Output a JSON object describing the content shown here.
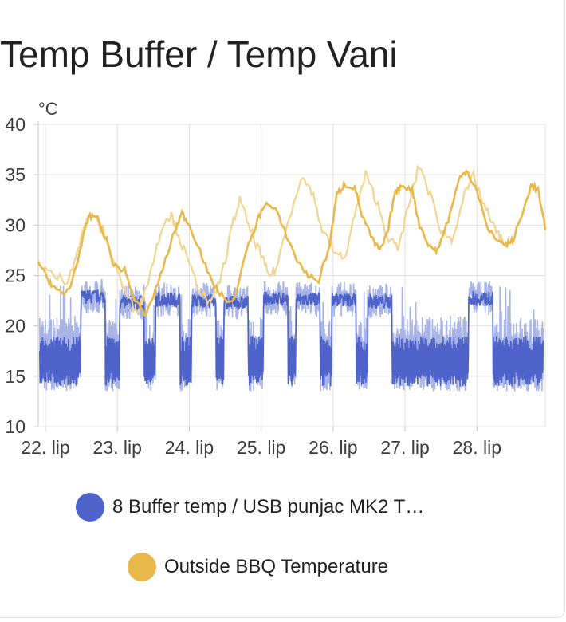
{
  "card": {
    "title": "Temp Buffer / Temp Vani"
  },
  "chart_data": {
    "type": "line",
    "unit": "°C",
    "ylim": [
      10,
      40
    ],
    "y_ticks": [
      10,
      15,
      20,
      25,
      30,
      35,
      40
    ],
    "xlim": [
      21.9,
      28.95
    ],
    "x_ticks": [
      {
        "value": 22,
        "label": "22. lip"
      },
      {
        "value": 23,
        "label": "23. lip"
      },
      {
        "value": 24,
        "label": "24. lip"
      },
      {
        "value": 25,
        "label": "25. lip"
      },
      {
        "value": 26,
        "label": "26. lip"
      },
      {
        "value": 27,
        "label": "27. lip"
      },
      {
        "value": 28,
        "label": "28. lip"
      }
    ],
    "grid": true,
    "legend_position": "bottom",
    "series": [
      {
        "name": "8 Buffer temp / USB punjac MK2 T…",
        "color": "#4d63c9",
        "faded_color": "#a9b4e6",
        "band": [
          14,
          19
        ],
        "peaks": [
          {
            "x": 22.66,
            "y": 23.2
          },
          {
            "x": 23.2,
            "y": 22.6
          },
          {
            "x": 23.7,
            "y": 22.9
          },
          {
            "x": 24.2,
            "y": 22.8
          },
          {
            "x": 24.65,
            "y": 22.6
          },
          {
            "x": 25.2,
            "y": 23.0
          },
          {
            "x": 25.65,
            "y": 22.9
          },
          {
            "x": 26.15,
            "y": 22.9
          },
          {
            "x": 26.65,
            "y": 22.7
          },
          {
            "x": 28.05,
            "y": 23.0
          }
        ],
        "min_band_lows": [
          13,
          14
        ]
      },
      {
        "name": "Outside BBQ Temperature",
        "color": "#e8b84a",
        "faded_color": "#f2d591",
        "points": [
          [
            21.9,
            26.5
          ],
          [
            22.0,
            25.0
          ],
          [
            22.1,
            24.0
          ],
          [
            22.25,
            23.0
          ],
          [
            22.35,
            24.0
          ],
          [
            22.5,
            28.0
          ],
          [
            22.6,
            30.8
          ],
          [
            22.7,
            31.0
          ],
          [
            22.85,
            28.5
          ],
          [
            22.95,
            26.0
          ],
          [
            23.1,
            25.5
          ],
          [
            23.25,
            22.5
          ],
          [
            23.4,
            21.0
          ],
          [
            23.6,
            25.0
          ],
          [
            23.8,
            29.5
          ],
          [
            23.9,
            31.2
          ],
          [
            24.0,
            30.0
          ],
          [
            24.15,
            27.5
          ],
          [
            24.3,
            24.5
          ],
          [
            24.45,
            23.0
          ],
          [
            24.6,
            22.2
          ],
          [
            24.8,
            27.5
          ],
          [
            24.95,
            30.5
          ],
          [
            25.05,
            32.2
          ],
          [
            25.2,
            31.5
          ],
          [
            25.35,
            29.0
          ],
          [
            25.5,
            26.5
          ],
          [
            25.65,
            25.0
          ],
          [
            25.8,
            24.5
          ],
          [
            25.95,
            28.0
          ],
          [
            26.05,
            33.0
          ],
          [
            26.15,
            34.0
          ],
          [
            26.3,
            33.8
          ],
          [
            26.4,
            31.0
          ],
          [
            26.55,
            28.5
          ],
          [
            26.65,
            27.5
          ],
          [
            26.75,
            29.0
          ],
          [
            26.85,
            33.0
          ],
          [
            26.95,
            34.0
          ],
          [
            27.1,
            33.5
          ],
          [
            27.2,
            30.0
          ],
          [
            27.35,
            27.8
          ],
          [
            27.45,
            27.5
          ],
          [
            27.6,
            30.5
          ],
          [
            27.75,
            34.5
          ],
          [
            27.85,
            35.5
          ],
          [
            28.0,
            33.5
          ],
          [
            28.15,
            29.5
          ],
          [
            28.3,
            28.5
          ],
          [
            28.4,
            28.0
          ],
          [
            28.5,
            28.5
          ],
          [
            28.65,
            31.5
          ],
          [
            28.75,
            34.0
          ],
          [
            28.85,
            33.5
          ],
          [
            28.95,
            29.5
          ]
        ],
        "faded_points": [
          [
            21.95,
            26.0
          ],
          [
            22.1,
            25.0
          ],
          [
            22.3,
            24.5
          ],
          [
            22.45,
            27.5
          ],
          [
            22.6,
            31.2
          ],
          [
            22.8,
            29.5
          ],
          [
            22.95,
            26.5
          ],
          [
            23.1,
            23.5
          ],
          [
            23.25,
            21.5
          ],
          [
            23.35,
            22.5
          ],
          [
            23.5,
            26.5
          ],
          [
            23.65,
            30.5
          ],
          [
            23.75,
            31.0
          ],
          [
            23.85,
            29.0
          ],
          [
            24.0,
            26.0
          ],
          [
            24.15,
            23.5
          ],
          [
            24.3,
            22.0
          ],
          [
            24.45,
            25.0
          ],
          [
            24.6,
            30.0
          ],
          [
            24.7,
            32.5
          ],
          [
            24.85,
            29.5
          ],
          [
            25.0,
            27.0
          ],
          [
            25.1,
            25.0
          ],
          [
            25.2,
            25.5
          ],
          [
            25.4,
            31.0
          ],
          [
            25.55,
            34.8
          ],
          [
            25.7,
            33.5
          ],
          [
            25.85,
            29.5
          ],
          [
            26.0,
            27.5
          ],
          [
            26.15,
            26.5
          ],
          [
            26.3,
            31.0
          ],
          [
            26.45,
            35.0
          ],
          [
            26.6,
            32.5
          ],
          [
            26.75,
            29.0
          ],
          [
            26.9,
            27.5
          ],
          [
            27.05,
            32.0
          ],
          [
            27.2,
            36.0
          ],
          [
            27.35,
            33.0
          ],
          [
            27.5,
            29.5
          ],
          [
            27.65,
            28.5
          ],
          [
            27.8,
            32.5
          ],
          [
            27.95,
            34.8
          ],
          [
            28.1,
            32.0
          ],
          [
            28.25,
            29.5
          ],
          [
            28.35,
            28.5
          ]
        ]
      }
    ]
  },
  "legend": {
    "items": [
      {
        "label": "8 Buffer temp / USB punjac MK2 T…",
        "color": "#4d63c9"
      },
      {
        "label": "Outside BBQ Temperature",
        "color": "#e8b84a"
      }
    ]
  }
}
